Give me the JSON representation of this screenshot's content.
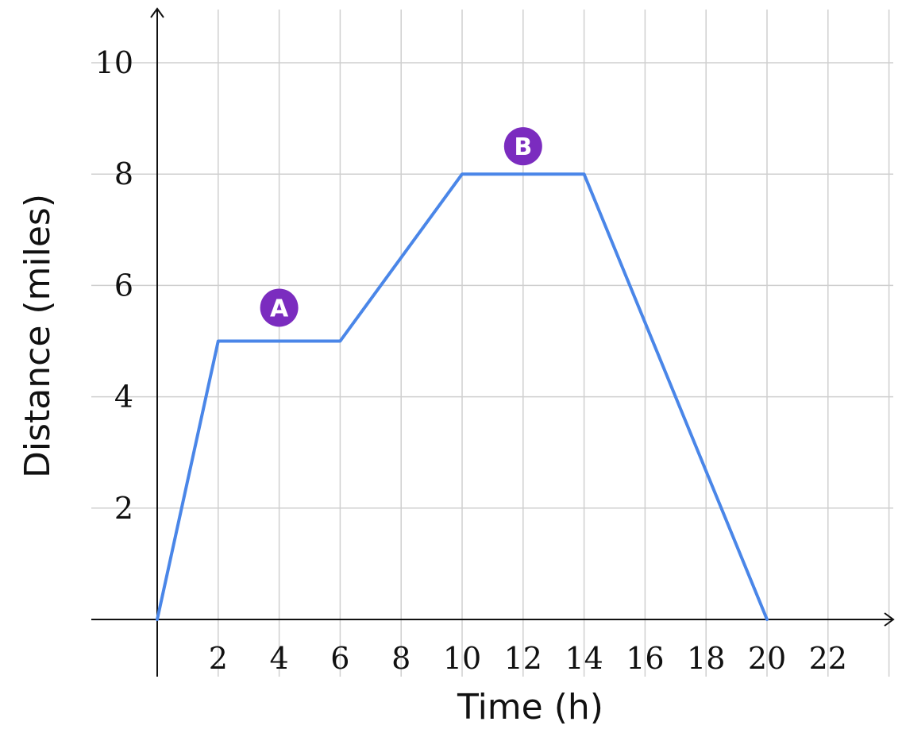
{
  "chart_data": {
    "type": "line",
    "xlabel": "Time (h)",
    "ylabel": "Distance (miles)",
    "xlim": [
      0,
      24
    ],
    "ylim": [
      0,
      11
    ],
    "xticks": [
      2,
      4,
      6,
      8,
      10,
      12,
      14,
      16,
      18,
      20,
      22
    ],
    "yticks": [
      2,
      4,
      6,
      8,
      10
    ],
    "grid": true,
    "series": [
      {
        "color": "#4a86e8",
        "points": [
          [
            0,
            0
          ],
          [
            2,
            5
          ],
          [
            6,
            5
          ],
          [
            10,
            8
          ],
          [
            14,
            8
          ],
          [
            20,
            0
          ]
        ]
      }
    ],
    "annotations": [
      {
        "label": "A",
        "x": 4,
        "y": 5.6,
        "color": "#7b2cbf"
      },
      {
        "label": "B",
        "x": 12,
        "y": 8.5,
        "color": "#7b2cbf"
      }
    ]
  }
}
